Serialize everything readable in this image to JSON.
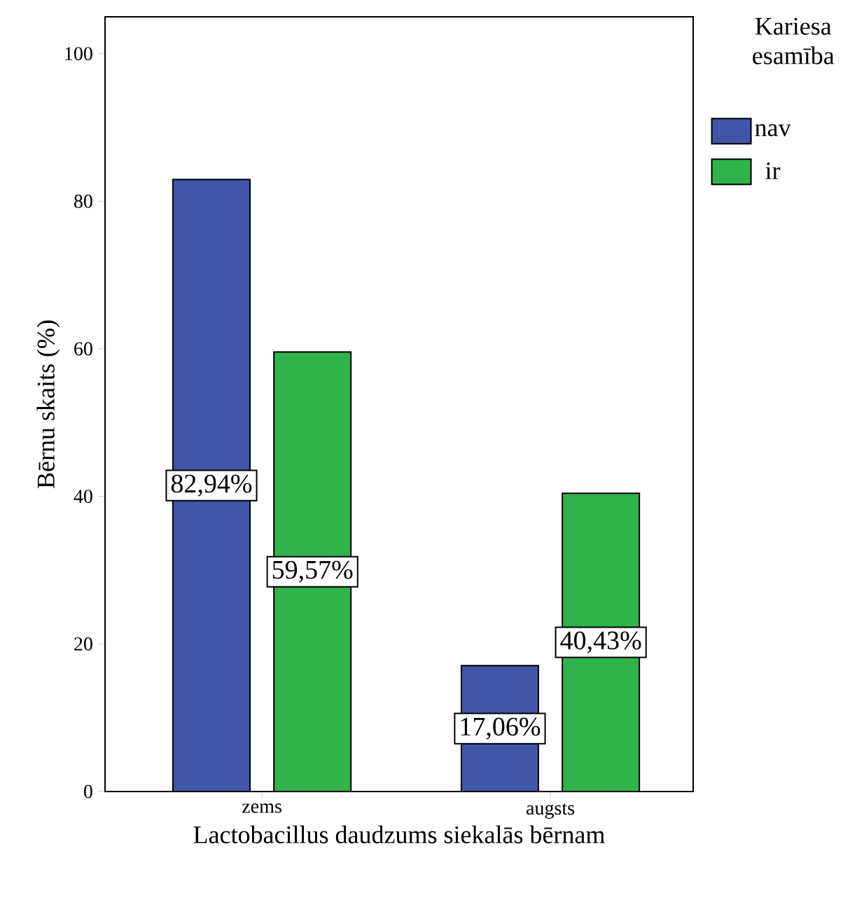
{
  "chart_data": {
    "type": "bar",
    "xlabel": "Lactobacillus daudzums siekalās bērnam",
    "ylabel": "Bērnu skaits (%)",
    "legend_title": "Kariesa esamība",
    "categories": [
      "zems",
      "augsts"
    ],
    "series": [
      {
        "name": "nav",
        "color": "#3f55a8",
        "values": [
          82.94,
          17.06
        ],
        "value_labels": [
          "82,94%",
          "17,06%"
        ]
      },
      {
        "name": "ir",
        "color": "#30b34a",
        "values": [
          59.57,
          40.43
        ],
        "value_labels": [
          "59,57%",
          "40,43%"
        ]
      }
    ],
    "ylim": [
      0,
      105
    ],
    "yticks": [
      0,
      20,
      40,
      60,
      80,
      100
    ],
    "grid": false,
    "legend": "right"
  }
}
